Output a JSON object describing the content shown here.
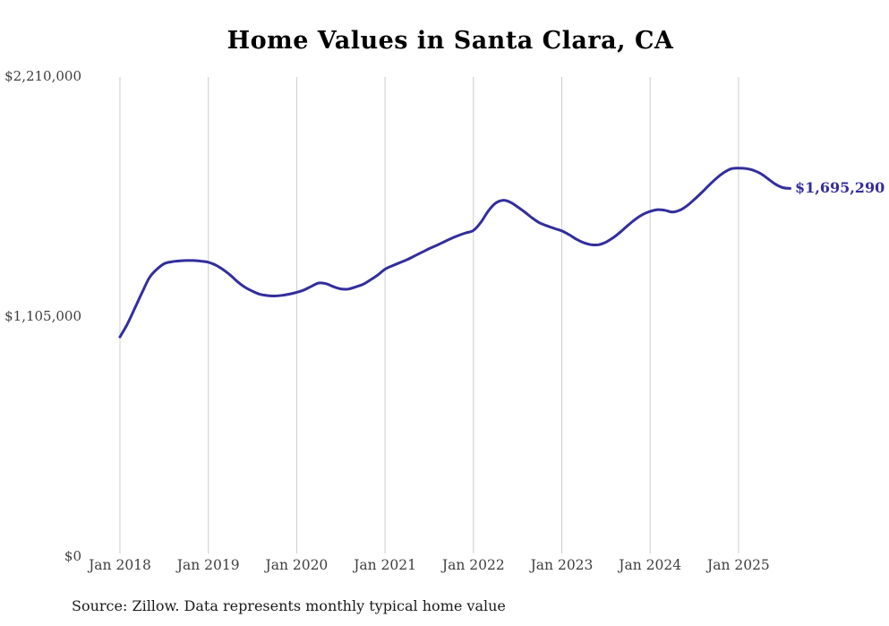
{
  "chart_data": {
    "type": "line",
    "title": "Home Values in Santa Clara, CA",
    "xlabel": "",
    "ylabel": "",
    "x_tick_labels": [
      "Jan 2018",
      "Jan 2019",
      "Jan 2020",
      "Jan 2021",
      "Jan 2022",
      "Jan 2023",
      "Jan 2024",
      "Jan 2025"
    ],
    "y_tick_labels": [
      "$0",
      "$1,105,000",
      "$2,210,000"
    ],
    "ylim": [
      0,
      2210000
    ],
    "grid": "vertical-only",
    "legend_position": "none",
    "line_color": "#332e9c",
    "grid_color": "#cccccc",
    "end_label": "$1,695,290",
    "source": "Source: Zillow. Data represents monthly typical home value",
    "series": [
      {
        "name": "Typical home value",
        "frequency": "monthly",
        "x": [
          "2018-01",
          "2018-02",
          "2018-03",
          "2018-04",
          "2018-05",
          "2018-06",
          "2018-07",
          "2018-08",
          "2018-09",
          "2018-10",
          "2018-11",
          "2018-12",
          "2019-01",
          "2019-02",
          "2019-03",
          "2019-04",
          "2019-05",
          "2019-06",
          "2019-07",
          "2019-08",
          "2019-09",
          "2019-10",
          "2019-11",
          "2019-12",
          "2020-01",
          "2020-02",
          "2020-03",
          "2020-04",
          "2020-05",
          "2020-06",
          "2020-07",
          "2020-08",
          "2020-09",
          "2020-10",
          "2020-11",
          "2020-12",
          "2021-01",
          "2021-02",
          "2021-03",
          "2021-04",
          "2021-05",
          "2021-06",
          "2021-07",
          "2021-08",
          "2021-09",
          "2021-10",
          "2021-11",
          "2021-12",
          "2022-01",
          "2022-02",
          "2022-03",
          "2022-04",
          "2022-05",
          "2022-06",
          "2022-07",
          "2022-08",
          "2022-09",
          "2022-10",
          "2022-11",
          "2022-12",
          "2023-01",
          "2023-02",
          "2023-03",
          "2023-04",
          "2023-05",
          "2023-06",
          "2023-07",
          "2023-08",
          "2023-09",
          "2023-10",
          "2023-11",
          "2023-12",
          "2024-01",
          "2024-02",
          "2024-03",
          "2024-04",
          "2024-05",
          "2024-06",
          "2024-07",
          "2024-08",
          "2024-09",
          "2024-10",
          "2024-11",
          "2024-12",
          "2025-01",
          "2025-02",
          "2025-03",
          "2025-04",
          "2025-05",
          "2025-06",
          "2025-07",
          "2025-08"
        ],
        "values": [
          1009000,
          1068000,
          1140000,
          1214000,
          1283000,
          1321000,
          1347000,
          1356000,
          1360000,
          1362000,
          1362000,
          1359000,
          1354000,
          1341000,
          1320000,
          1294000,
          1263000,
          1238000,
          1220000,
          1206000,
          1200000,
          1198000,
          1201000,
          1207000,
          1215000,
          1226000,
          1243000,
          1258000,
          1255000,
          1241000,
          1231000,
          1230000,
          1240000,
          1252000,
          1272000,
          1295000,
          1322000,
          1338000,
          1352000,
          1366000,
          1383000,
          1400000,
          1417000,
          1432000,
          1448000,
          1464000,
          1478000,
          1490000,
          1501000,
          1538000,
          1590000,
          1627000,
          1640000,
          1632000,
          1610000,
          1585000,
          1558000,
          1536000,
          1522000,
          1510000,
          1499000,
          1481000,
          1460000,
          1444000,
          1435000,
          1435000,
          1447000,
          1468000,
          1495000,
          1525000,
          1553000,
          1575000,
          1589000,
          1597000,
          1594000,
          1586000,
          1594000,
          1615000,
          1644000,
          1676000,
          1710000,
          1742000,
          1768000,
          1786000,
          1789000,
          1787000,
          1779000,
          1764000,
          1740000,
          1715000,
          1699000,
          1695290
        ]
      }
    ]
  }
}
